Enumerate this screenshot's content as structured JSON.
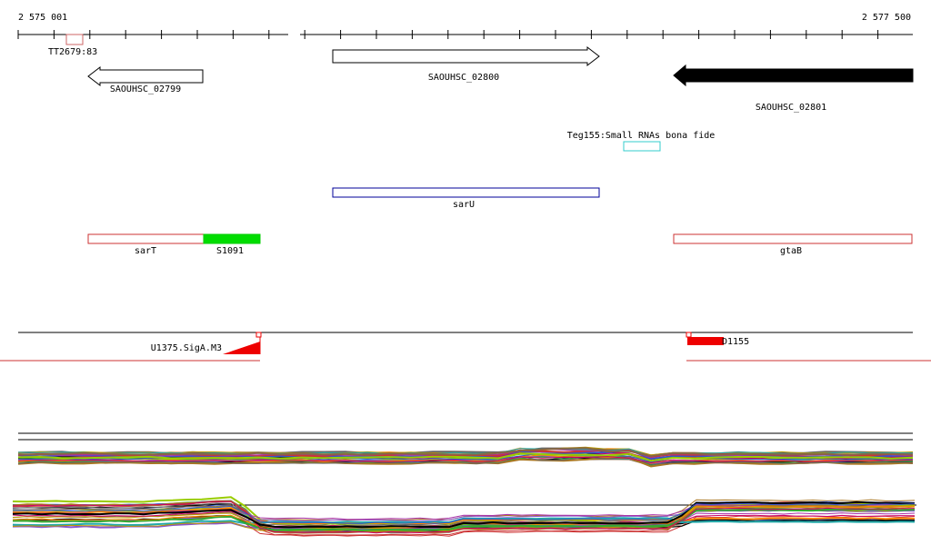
{
  "ruler": {
    "start_label": "2 575 001",
    "end_label": "2 577 500"
  },
  "features": {
    "tt_label": "TT2679:83",
    "gene_left_label": "SAOUHSC_02799",
    "gene_mid_label": "SAOUHSC_02800",
    "gene_right_label": "SAOUHSC_02801",
    "teg_label": "Teg155:Small RNAs bona fide",
    "saru_label": "sarU",
    "sart_label": "sarT",
    "s1091_label": "S1091",
    "gtab_label": "gtaB",
    "promoter_label": "U1375.SigA.M3",
    "d1155_label": "D1155"
  },
  "colors": {
    "ruler": "#000000",
    "tt_box": "#cc6666",
    "gene_black": "#000000",
    "teg_box": "#33cccc",
    "saru_box": "#000099",
    "red_box": "#cc3333",
    "s1091": "#00dd00",
    "promoter": "#ee0000",
    "track_line": "#cc3333"
  }
}
